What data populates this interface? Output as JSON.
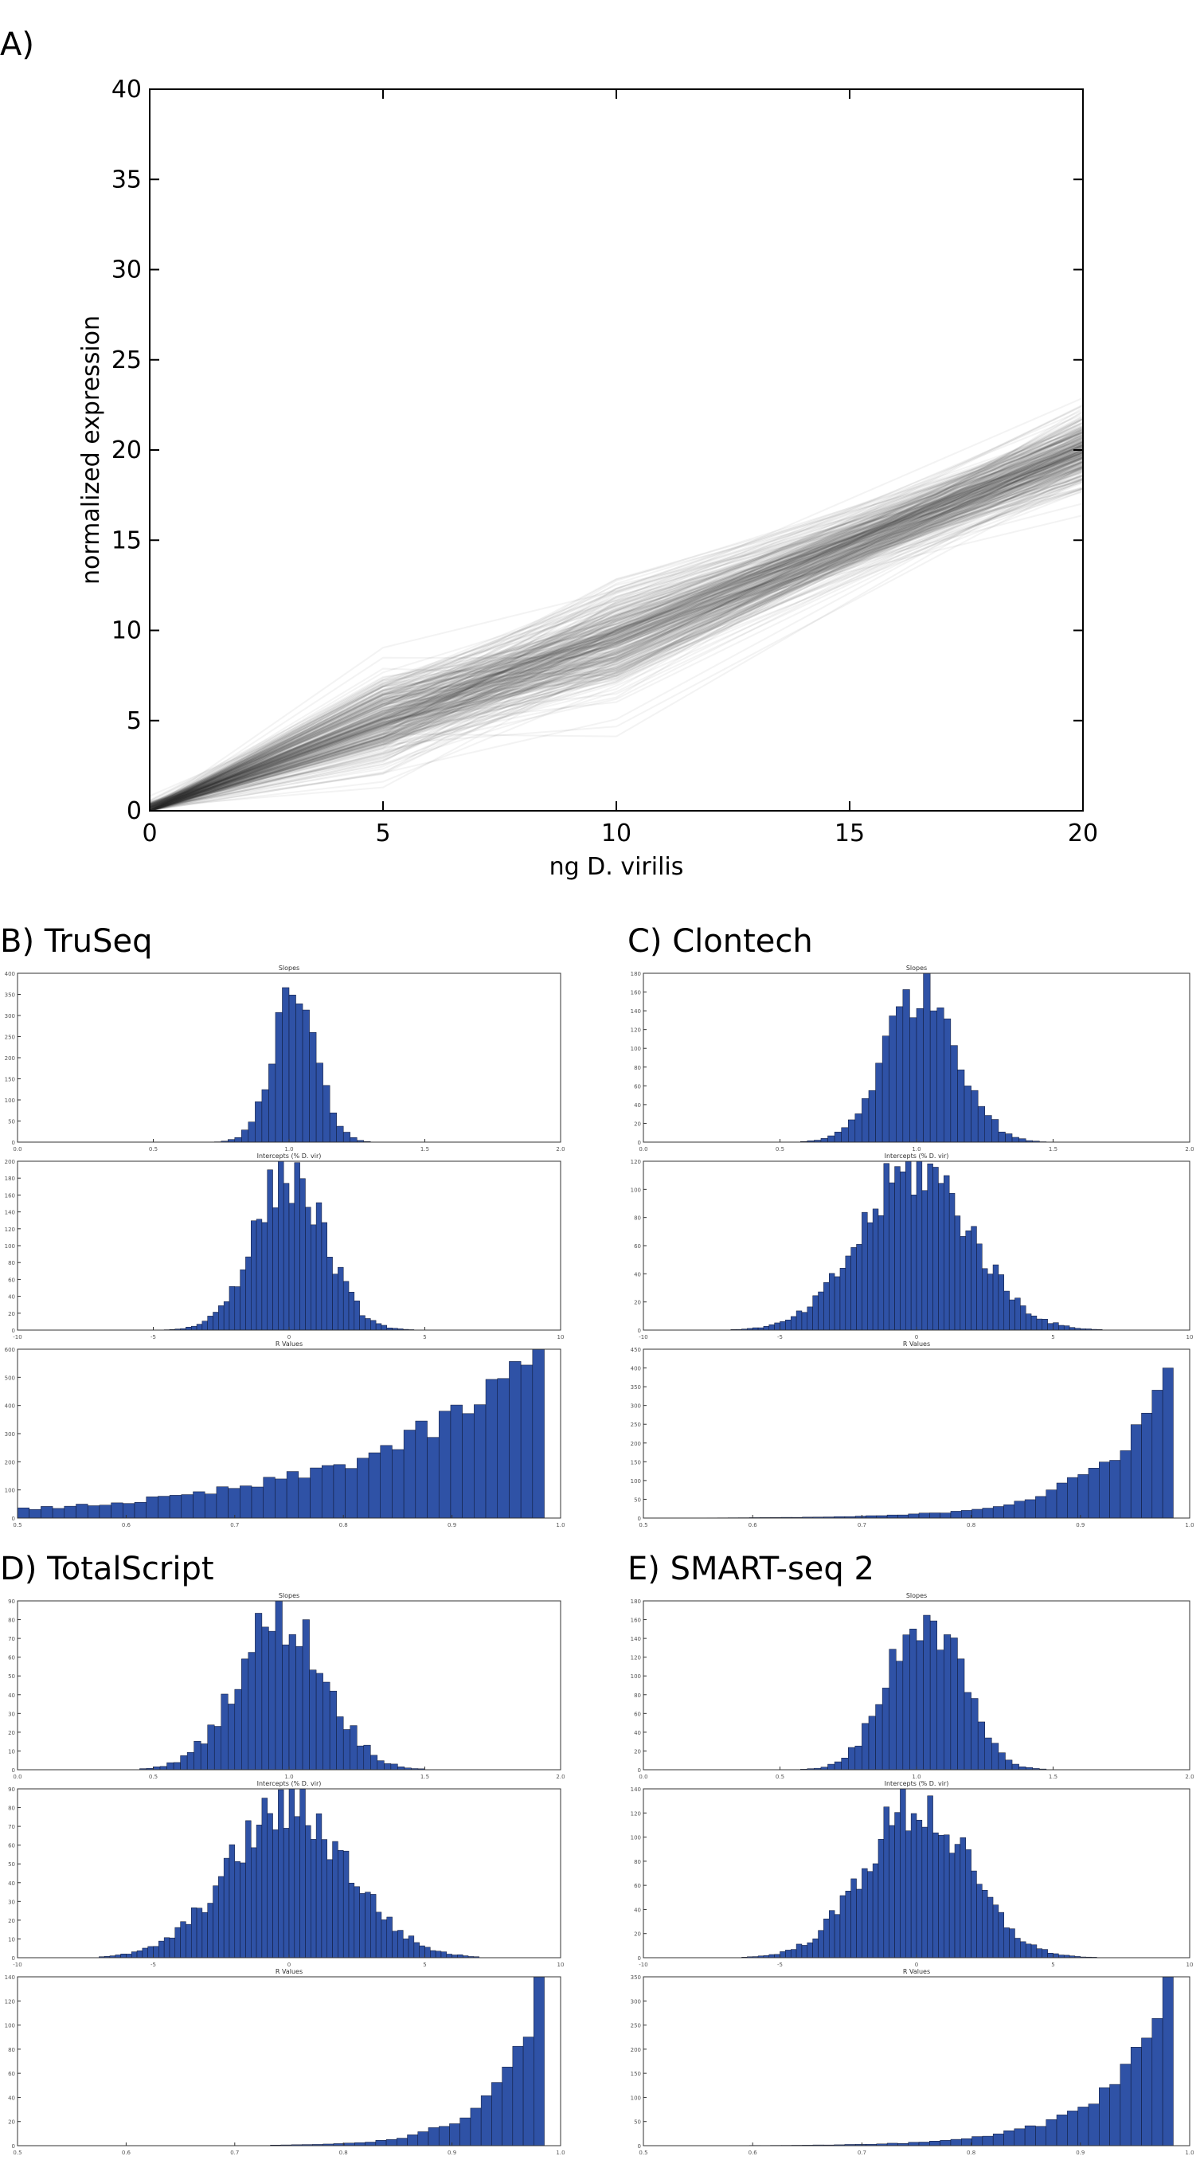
{
  "panel_labels": {
    "a": "A)",
    "b": "B) TruSeq",
    "c": "C) Clontech",
    "d": "D) TotalScript",
    "e": "E) SMART-seq 2"
  },
  "colors": {
    "bar_fill": "#2f52a6",
    "bar_stroke": "#0c1430",
    "line": "#3a3a3a"
  },
  "chart_data": [
    {
      "id": "A",
      "type": "line",
      "title": "",
      "xlabel": "ng D. virilis",
      "ylabel": "normalized expression",
      "xlim": [
        0,
        20
      ],
      "ylim": [
        0,
        40
      ],
      "xticks": [
        "0",
        "5",
        "10",
        "15",
        "20"
      ],
      "yticks": [
        "0",
        "5",
        "10",
        "15",
        "20",
        "25",
        "30",
        "35",
        "40"
      ],
      "grid": false,
      "x": [
        0,
        5,
        10,
        20
      ],
      "series_description_points": [
        {
          "x": 0,
          "y_center": 0,
          "y_spread": 0.6
        },
        {
          "x": 5,
          "y_center": 5.0,
          "y_spread": 3.2
        },
        {
          "x": 10,
          "y_center": 9.5,
          "y_spread": 4.5
        },
        {
          "x": 20,
          "y_center": 20.0,
          "y_spread": 2.6
        }
      ]
    },
    {
      "id": "B_slopes",
      "type": "bar",
      "title": "Slopes",
      "xlim": [
        0,
        2
      ],
      "ylim": [
        0,
        400
      ],
      "xticks": [
        "0.0",
        "0.5",
        "1.0",
        "1.5",
        "2.0"
      ],
      "yticks": [
        "0",
        "50",
        "100",
        "150",
        "200",
        "250",
        "300",
        "350",
        "400"
      ],
      "hist": {
        "center": 1.02,
        "sd": 0.08,
        "peak": 370,
        "xmin": 0,
        "xmax": 2,
        "bins": 80
      }
    },
    {
      "id": "B_intercepts",
      "type": "bar",
      "title": "Intercepts (% D. vir)",
      "xlim": [
        -10,
        10
      ],
      "ylim": [
        0,
        200
      ],
      "xticks": [
        "-10",
        "-5",
        "0",
        "5",
        "10"
      ],
      "yticks": [
        "0",
        "20",
        "40",
        "60",
        "80",
        "100",
        "120",
        "140",
        "160",
        "180",
        "200"
      ],
      "hist": {
        "center": 0,
        "sd": 1.3,
        "peak": 185,
        "xmin": -10,
        "xmax": 10,
        "bins": 100
      }
    },
    {
      "id": "B_r",
      "type": "bar",
      "title": "R Values",
      "xlim": [
        0.5,
        1.0
      ],
      "ylim": [
        0,
        600
      ],
      "xticks": [
        "0.5",
        "0.6",
        "0.7",
        "0.8",
        "0.9",
        "1.0"
      ],
      "yticks": [
        "0",
        "100",
        "200",
        "300",
        "400",
        "500",
        "600"
      ],
      "hist": {
        "kind": "exp",
        "peak": 600,
        "rate": 0.022,
        "xmin": 0.5,
        "xmax": 0.985,
        "bins": 45
      }
    },
    {
      "id": "C_slopes",
      "type": "bar",
      "title": "Slopes",
      "xlim": [
        0,
        2
      ],
      "ylim": [
        0,
        180
      ],
      "xticks": [
        "0.0",
        "0.5",
        "1.0",
        "1.5",
        "2.0"
      ],
      "yticks": [
        "0",
        "20",
        "40",
        "60",
        "80",
        "100",
        "120",
        "140",
        "160",
        "180"
      ],
      "hist": {
        "center": 1.02,
        "sd": 0.13,
        "peak": 170,
        "xmin": 0,
        "xmax": 2,
        "bins": 80
      }
    },
    {
      "id": "C_intercepts",
      "type": "bar",
      "title": "Intercepts (% D. vir)",
      "xlim": [
        -10,
        10
      ],
      "ylim": [
        0,
        120
      ],
      "xticks": [
        "-10",
        "-5",
        "0",
        "5",
        "10"
      ],
      "yticks": [
        "0",
        "20",
        "40",
        "60",
        "80",
        "100",
        "120"
      ],
      "hist": {
        "center": 0,
        "sd": 2.0,
        "peak": 115,
        "xmin": -10,
        "xmax": 10,
        "bins": 100
      }
    },
    {
      "id": "C_r",
      "type": "bar",
      "title": "R Values",
      "xlim": [
        0.5,
        1.0
      ],
      "ylim": [
        0,
        450
      ],
      "xticks": [
        "0.5",
        "0.6",
        "0.7",
        "0.8",
        "0.9",
        "1.0"
      ],
      "yticks": [
        "0",
        "50",
        "100",
        "150",
        "200",
        "250",
        "300",
        "350",
        "400",
        "450"
      ],
      "hist": {
        "kind": "exp",
        "peak": 400,
        "rate": 0.05,
        "xmin": 0.5,
        "xmax": 0.985,
        "bins": 50
      }
    },
    {
      "id": "D_slopes",
      "type": "bar",
      "title": "Slopes",
      "xlim": [
        0,
        2
      ],
      "ylim": [
        0,
        90
      ],
      "xticks": [
        "0.0",
        "0.5",
        "1.0",
        "1.5",
        "2.0"
      ],
      "yticks": [
        "0",
        "10",
        "20",
        "30",
        "40",
        "50",
        "60",
        "70",
        "80",
        "90"
      ],
      "hist": {
        "center": 0.97,
        "sd": 0.16,
        "peak": 82,
        "xmin": 0,
        "xmax": 2,
        "bins": 80
      }
    },
    {
      "id": "D_intercepts",
      "type": "bar",
      "title": "Intercepts (% D. vir)",
      "xlim": [
        -10,
        10
      ],
      "ylim": [
        0,
        90
      ],
      "xticks": [
        "-10",
        "-5",
        "0",
        "5",
        "10"
      ],
      "yticks": [
        "0",
        "10",
        "20",
        "30",
        "40",
        "50",
        "60",
        "70",
        "80",
        "90"
      ],
      "hist": {
        "center": 0,
        "sd": 2.2,
        "peak": 80,
        "xmin": -10,
        "xmax": 10,
        "bins": 100
      }
    },
    {
      "id": "D_r",
      "type": "bar",
      "title": "R Values",
      "xlim": [
        0.5,
        1.0
      ],
      "ylim": [
        0,
        140
      ],
      "xticks": [
        "0.5",
        "0.6",
        "0.7",
        "0.8",
        "0.9",
        "1.0"
      ],
      "yticks": [
        "0",
        "20",
        "40",
        "60",
        "80",
        "100",
        "120",
        "140"
      ],
      "hist": {
        "kind": "exp",
        "peak": 140,
        "rate": 0.075,
        "xmin": 0.5,
        "xmax": 0.985,
        "bins": 50
      }
    },
    {
      "id": "E_slopes",
      "type": "bar",
      "title": "Slopes",
      "xlim": [
        0,
        2
      ],
      "ylim": [
        0,
        180
      ],
      "xticks": [
        "0.0",
        "0.5",
        "1.0",
        "1.5",
        "2.0"
      ],
      "yticks": [
        "0",
        "20",
        "40",
        "60",
        "80",
        "100",
        "120",
        "140",
        "160",
        "180"
      ],
      "hist": {
        "center": 1.03,
        "sd": 0.13,
        "peak": 170,
        "xmin": 0,
        "xmax": 2,
        "bins": 80
      }
    },
    {
      "id": "E_intercepts",
      "type": "bar",
      "title": "Intercepts (% D. vir)",
      "xlim": [
        -10,
        10
      ],
      "ylim": [
        0,
        140
      ],
      "xticks": [
        "-10",
        "-5",
        "0",
        "5",
        "10"
      ],
      "yticks": [
        "0",
        "20",
        "40",
        "60",
        "80",
        "100",
        "120",
        "140"
      ],
      "hist": {
        "center": 0,
        "sd": 1.9,
        "peak": 125,
        "xmin": -10,
        "xmax": 10,
        "bins": 100
      }
    },
    {
      "id": "E_r",
      "type": "bar",
      "title": "R Values",
      "xlim": [
        0.5,
        1.0
      ],
      "ylim": [
        0,
        350
      ],
      "xticks": [
        "0.5",
        "0.6",
        "0.7",
        "0.8",
        "0.9",
        "1.0"
      ],
      "yticks": [
        "0",
        "50",
        "100",
        "150",
        "200",
        "250",
        "300",
        "350"
      ],
      "hist": {
        "kind": "exp",
        "peak": 350,
        "rate": 0.055,
        "xmin": 0.5,
        "xmax": 0.985,
        "bins": 50
      }
    }
  ]
}
